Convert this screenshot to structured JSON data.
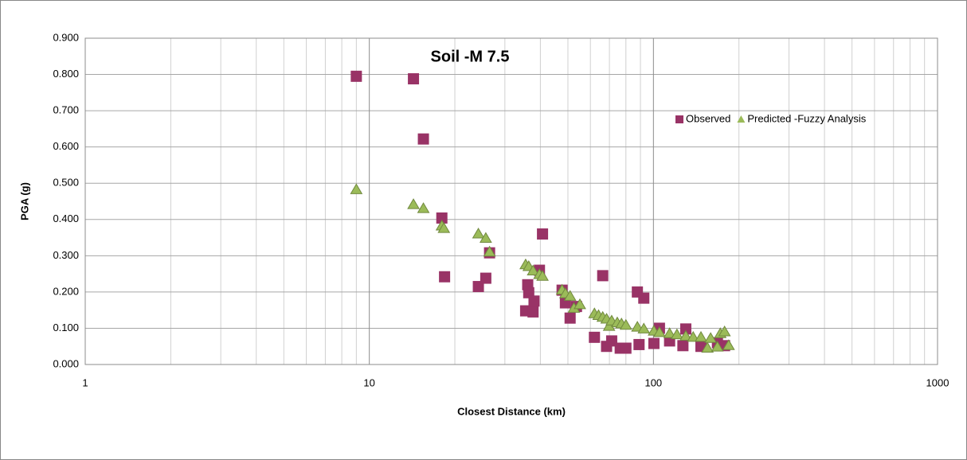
{
  "chart_data": {
    "type": "scatter",
    "title": "Soil -M 7.5",
    "xlabel": "Closest Distance (km)",
    "ylabel": "PGA (g)",
    "xscale": "log",
    "xlim": [
      1,
      1000
    ],
    "xticks": [
      1,
      10,
      100,
      1000
    ],
    "ylim": [
      0,
      0.9
    ],
    "yticks": [
      {
        "value": 0,
        "label": "0.000"
      },
      {
        "value": 0.1,
        "label": "0.100"
      },
      {
        "value": 0.2,
        "label": "0.200"
      },
      {
        "value": 0.3,
        "label": "0.300"
      },
      {
        "value": 0.4,
        "label": "0.400"
      },
      {
        "value": 0.5,
        "label": "0.500"
      },
      {
        "value": 0.6,
        "label": "0.600"
      },
      {
        "value": 0.7,
        "label": "0.700"
      },
      {
        "value": 0.8,
        "label": "0.800"
      },
      {
        "value": 0.9,
        "label": "0.900"
      }
    ],
    "grid": true,
    "legend": "upper right",
    "series": [
      {
        "name": "Observed",
        "color": "#993366",
        "marker": "square",
        "x": [
          9.0,
          14.3,
          15.5,
          18.0,
          18.4,
          24.2,
          25.7,
          26.5,
          35.5,
          36.1,
          36.4,
          37.7,
          38.0,
          39.7,
          40.7,
          47.7,
          49.0,
          50.9,
          53.6,
          62.0,
          66.3,
          68.4,
          71.3,
          76.4,
          80.0,
          87.8,
          89.0,
          92.5,
          100.4,
          105,
          114,
          127,
          130,
          147,
          168,
          178
        ],
        "values": [
          0.795,
          0.788,
          0.622,
          0.404,
          0.242,
          0.215,
          0.238,
          0.308,
          0.148,
          0.22,
          0.198,
          0.145,
          0.175,
          0.26,
          0.36,
          0.205,
          0.17,
          0.128,
          0.16,
          0.075,
          0.245,
          0.05,
          0.065,
          0.045,
          0.045,
          0.2,
          0.055,
          0.183,
          0.058,
          0.1,
          0.065,
          0.052,
          0.098,
          0.05,
          0.06,
          0.052
        ]
      },
      {
        "name": "Predicted -Fuzzy Analysis",
        "color": "#9bbb59",
        "marker": "triangle",
        "x": [
          9.0,
          14.3,
          15.5,
          18.0,
          18.3,
          24.2,
          25.7,
          26.5,
          35.5,
          36.4,
          37.7,
          39.7,
          40.7,
          47.7,
          49.0,
          50.9,
          52.5,
          55.1,
          62.0,
          64.1,
          66.3,
          68.4,
          69.8,
          71.3,
          74.6,
          77.2,
          80.0,
          87.8,
          92.5,
          100.4,
          105,
          114,
          121,
          130,
          138,
          147,
          155,
          159,
          168,
          172,
          178,
          184
        ],
        "values": [
          0.482,
          0.441,
          0.43,
          0.382,
          0.375,
          0.36,
          0.348,
          0.31,
          0.275,
          0.27,
          0.258,
          0.248,
          0.243,
          0.205,
          0.195,
          0.188,
          0.155,
          0.165,
          0.14,
          0.135,
          0.13,
          0.125,
          0.105,
          0.12,
          0.115,
          0.112,
          0.108,
          0.103,
          0.098,
          0.092,
          0.088,
          0.085,
          0.082,
          0.078,
          0.075,
          0.075,
          0.045,
          0.072,
          0.048,
          0.085,
          0.09,
          0.052
        ]
      }
    ]
  }
}
